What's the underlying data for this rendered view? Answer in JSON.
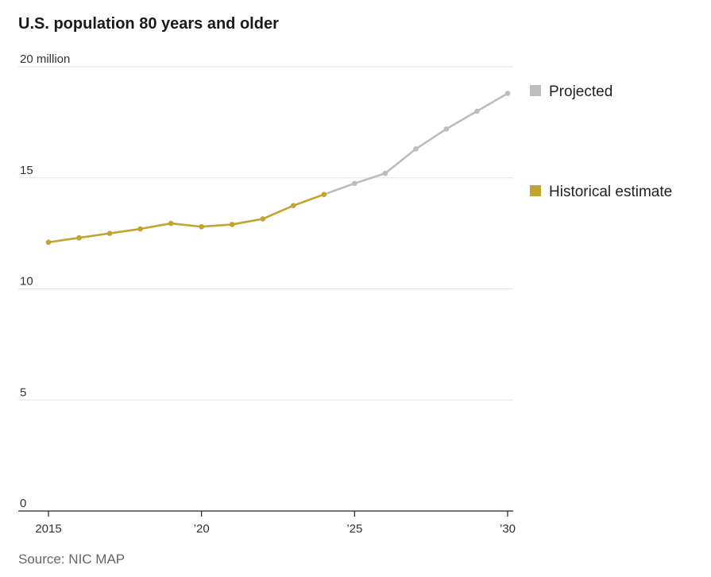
{
  "chart_data": {
    "type": "line",
    "title": "U.S. population 80 years and older",
    "source": "Source: NIC MAP",
    "y_unit_label": "20 million",
    "ylim": [
      0,
      20
    ],
    "xlim": [
      2015,
      2030
    ],
    "grid": true,
    "legend_position": "right",
    "y_ticks": [
      {
        "value": 0,
        "label": "0"
      },
      {
        "value": 5,
        "label": "5"
      },
      {
        "value": 10,
        "label": "10"
      },
      {
        "value": 15,
        "label": "15"
      },
      {
        "value": 20,
        "label": "20 million"
      }
    ],
    "x_ticks": [
      {
        "value": 2015,
        "label": "2015"
      },
      {
        "value": 2020,
        "label": "’20"
      },
      {
        "value": 2025,
        "label": "’25"
      },
      {
        "value": 2030,
        "label": "’30"
      }
    ],
    "series": [
      {
        "name": "Historical estimate",
        "color": "#c2a530",
        "x": [
          2015,
          2016,
          2017,
          2018,
          2019,
          2020,
          2021,
          2022,
          2023,
          2024
        ],
        "y": [
          12.1,
          12.3,
          12.5,
          12.7,
          12.95,
          12.8,
          12.9,
          13.15,
          13.75,
          14.25
        ]
      },
      {
        "name": "Projected",
        "color": "#bdbdbd",
        "x": [
          2024,
          2025,
          2026,
          2027,
          2028,
          2029,
          2030
        ],
        "y": [
          14.25,
          14.75,
          15.2,
          16.3,
          17.2,
          18.0,
          18.8
        ]
      }
    ],
    "legend": [
      {
        "name": "Projected",
        "color": "#bdbdbd"
      },
      {
        "name": "Historical estimate",
        "color": "#c2a530"
      }
    ]
  }
}
